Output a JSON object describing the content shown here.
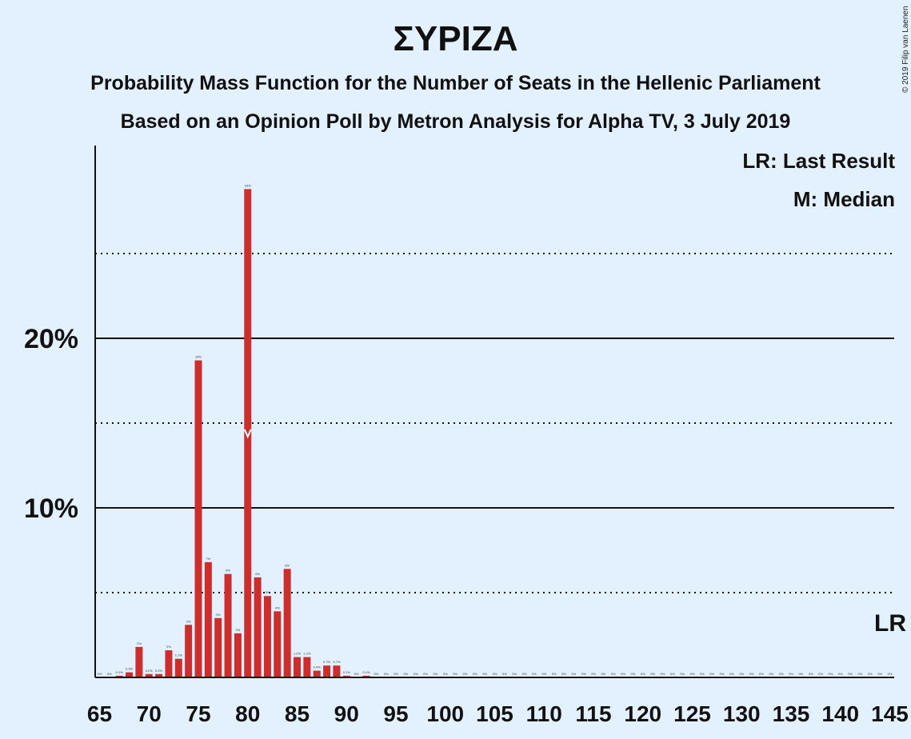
{
  "title": "ΣΥΡΙΖΑ",
  "subtitle": "Probability Mass Function for the Number of Seats in the Hellenic Parliament",
  "subtitle2": "Based on an Opinion Poll by Metron Analysis for Alpha TV, 3 July 2019",
  "copyright": "© 2019 Filip van Laenen",
  "legend": {
    "lr": "LR: Last Result",
    "m": "M: Median"
  },
  "colors": {
    "bar": "#cc2e2e",
    "background": "#e3f0fd"
  },
  "chart_data": {
    "type": "bar",
    "title": "ΣΥΡΙΖΑ",
    "xlabel": "",
    "ylabel": "",
    "ylim": [
      0,
      31
    ],
    "ytick_labels": [
      {
        "value": 10,
        "label": "10%"
      },
      {
        "value": 20,
        "label": "20%"
      }
    ],
    "solid_gridlines": [
      10,
      20
    ],
    "dotted_gridlines": [
      5,
      15,
      25
    ],
    "xtick_labels": [
      "65",
      "70",
      "75",
      "80",
      "85",
      "90",
      "95",
      "100",
      "105",
      "110",
      "115",
      "120",
      "125",
      "130",
      "135",
      "140",
      "145"
    ],
    "median_seat": 80,
    "median_marker_value": 14.2,
    "last_result_seat": 145,
    "last_result_label": "LR",
    "seats": [
      65,
      66,
      67,
      68,
      69,
      70,
      71,
      72,
      73,
      74,
      75,
      76,
      77,
      78,
      79,
      80,
      81,
      82,
      83,
      84,
      85,
      86,
      87,
      88,
      89,
      90,
      91,
      92,
      93,
      94,
      95,
      96,
      97,
      98,
      99,
      100,
      101,
      102,
      103,
      104,
      105,
      106,
      107,
      108,
      109,
      110,
      111,
      112,
      113,
      114,
      115,
      116,
      117,
      118,
      119,
      120,
      121,
      122,
      123,
      124,
      125,
      126,
      127,
      128,
      129,
      130,
      131,
      132,
      133,
      134,
      135,
      136,
      137,
      138,
      139,
      140,
      141,
      142,
      143,
      144,
      145
    ],
    "values": [
      0,
      0,
      0.1,
      0.3,
      1.8,
      0.2,
      0.2,
      1.6,
      1.1,
      3.1,
      18.7,
      6.8,
      3.5,
      6.1,
      2.6,
      28.8,
      5.9,
      4.8,
      3.9,
      6.4,
      1.2,
      1.2,
      0.4,
      0.7,
      0.7,
      0.1,
      0,
      0.1,
      0,
      0,
      0,
      0,
      0,
      0,
      0,
      0,
      0,
      0,
      0,
      0,
      0,
      0,
      0,
      0,
      0,
      0,
      0,
      0,
      0,
      0,
      0,
      0,
      0,
      0,
      0,
      0,
      0,
      0,
      0,
      0,
      0,
      0,
      0,
      0,
      0,
      0,
      0,
      0,
      0,
      0,
      0,
      0,
      0,
      0,
      0,
      0,
      0,
      0,
      0,
      0,
      0
    ],
    "value_labels": [
      "0%",
      "0%",
      "0.1%",
      "0.3%",
      "2%",
      "0.2%",
      "0.2%",
      "2%",
      "1.1%",
      "3%",
      "19%",
      "7%",
      "3%",
      "6%",
      "3%",
      "29%",
      "6%",
      "5%",
      "4%",
      "6%",
      "1.2%",
      "1.2%",
      "0.4%",
      "0.7%",
      "0.7%",
      "0.1%",
      "0%",
      "0.1%",
      "0%",
      "0%",
      "0%",
      "0%",
      "0%",
      "0%",
      "0%",
      "0%",
      "0%",
      "0%",
      "0%",
      "0%",
      "0%",
      "0%",
      "0%",
      "0%",
      "0%",
      "0%",
      "0%",
      "0%",
      "0%",
      "0%",
      "0%",
      "0%",
      "0%",
      "0%",
      "0%",
      "0%",
      "0%",
      "0%",
      "0%",
      "0%",
      "0%",
      "0%",
      "0%",
      "0%",
      "0%",
      "0%",
      "0%",
      "0%",
      "0%",
      "0%",
      "0%",
      "0%",
      "0%",
      "0%",
      "0%",
      "0%",
      "0%",
      "0%",
      "0%",
      "0%",
      "0%"
    ]
  }
}
